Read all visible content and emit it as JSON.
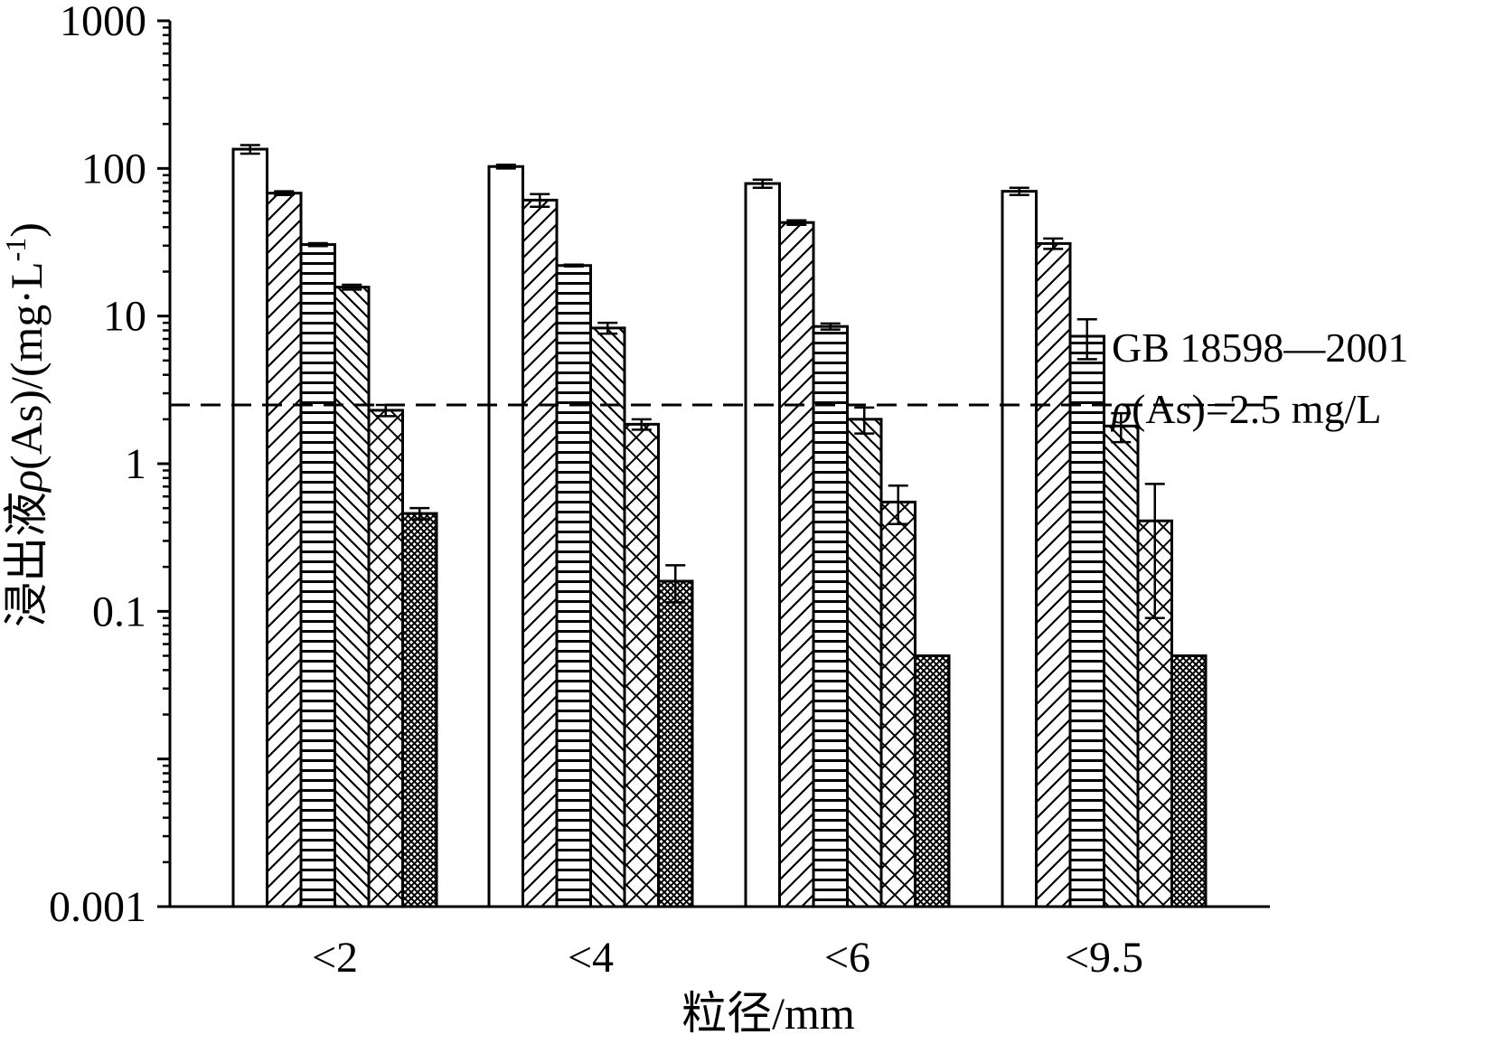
{
  "chart_data": {
    "type": "bar",
    "yscale": "log",
    "ylim": [
      0.001,
      1000
    ],
    "yticks": [
      "0.001",
      "0.1",
      "1",
      "10",
      "100",
      "1000"
    ],
    "xlabel": "粒径/mm",
    "ylabel": "浸出液ρ(As)/(mg·L-1)",
    "ylabel_parts": {
      "prefix": "浸出液",
      "rho": "ρ",
      "middle": "(As)/(mg·L",
      "sup": "-1",
      "suffix": ")"
    },
    "categories": [
      "<2",
      "<4",
      "<6",
      "<9.5"
    ],
    "series": [
      {
        "pattern": "none",
        "values": [
          135,
          103,
          79,
          70
        ],
        "errors": [
          9,
          3,
          5,
          4
        ]
      },
      {
        "pattern": "diagonal",
        "values": [
          68,
          61,
          43,
          31
        ],
        "errors": [
          2,
          6,
          1.5,
          2.5
        ]
      },
      {
        "pattern": "horizontal",
        "values": [
          30.5,
          22,
          8.5,
          7.3
        ],
        "errors": [
          0.7,
          0.3,
          0.4,
          2.2
        ]
      },
      {
        "pattern": "backslash",
        "values": [
          15.7,
          8.3,
          2.0,
          1.8
        ],
        "errors": [
          0.6,
          0.7,
          0.4,
          0.4
        ]
      },
      {
        "pattern": "crosshatch",
        "values": [
          2.3,
          1.85,
          0.55,
          0.41
        ],
        "errors": [
          0.2,
          0.15,
          0.16,
          0.32
        ]
      },
      {
        "pattern": "dense",
        "values": [
          0.46,
          0.16,
          0.05,
          0.05
        ],
        "errors": [
          0.04,
          0.045,
          0,
          0
        ]
      }
    ],
    "reference_line": {
      "value": 2.5,
      "style": "dashed",
      "label_line1": "GB 18598—2001",
      "label_line2_rho": "ρ",
      "label_line2_rest": "(As)=2.5 mg/L"
    },
    "grid": false,
    "legend": "none"
  }
}
